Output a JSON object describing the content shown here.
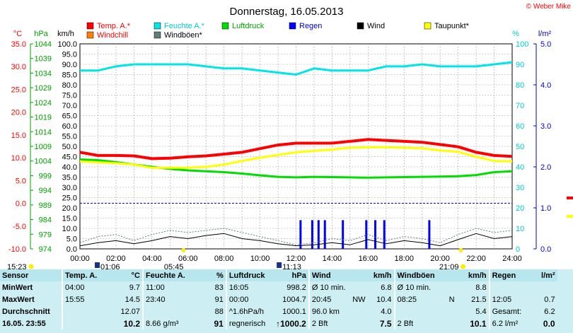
{
  "title": "Donnerstag, 16.05.2013",
  "credit": "© Weber Mike",
  "colors": {
    "temp": "#ff0000",
    "windchill": "#ff8000",
    "humidity": "#00e5e5",
    "windgust": "#5f7f7f",
    "pressure": "#00dd00",
    "rain": "#0000ff",
    "wind": "#000000",
    "dewpoint": "#ffff00",
    "axis_left": "#ff0000",
    "axis_hpa": "#00a000",
    "axis_right": "#00cccc",
    "axis_rain": "#0000cc"
  },
  "axis_headers": {
    "celsius": "°C",
    "hpa": "hPa",
    "kmh": "km/h",
    "percent": "%",
    "rain": "l/m²"
  },
  "legend": [
    {
      "label": "Temp. A.*",
      "color": "#ff0000"
    },
    {
      "label": "Feuchte A.*",
      "color": "#00e5e5"
    },
    {
      "label": "Luftdruck",
      "color": "#00dd00"
    },
    {
      "label": "Regen",
      "color": "#0000ff"
    },
    {
      "label": "Wind",
      "color": "#000000"
    },
    {
      "label": "Taupunkt*",
      "color": "#ffff00"
    },
    {
      "label": "Windchill",
      "color": "#ff8000"
    },
    {
      "label": "Windböen*",
      "color": "#5f7f7f"
    }
  ],
  "ticks": {
    "celsius": [
      "35.0",
      "30.0",
      "25.0",
      "20.0",
      "15.0",
      "10.0",
      "5.0",
      "0.0",
      "-5.0",
      "-10.0"
    ],
    "hpa": [
      "1044",
      "1039",
      "1034",
      "1029",
      "1024",
      "1019",
      "1014",
      "1009",
      "1004",
      "999",
      "994",
      "989",
      "984",
      "979",
      "974"
    ],
    "kmh": [
      "100.0",
      "95.0",
      "90.0",
      "85.0",
      "80.0",
      "75.0",
      "70.0",
      "65.0",
      "60.0",
      "55.0",
      "50.0",
      "45.0",
      "40.0",
      "35.0",
      "30.0",
      "25.0",
      "20.0",
      "15.0",
      "10.0",
      "5.0",
      "0.0"
    ],
    "percent": [
      "100",
      "90",
      "80",
      "70",
      "60",
      "50",
      "40",
      "30",
      "20",
      "10",
      "0"
    ],
    "rain": [
      "5.0",
      "4.0",
      "3.0",
      "2.0",
      "1.0",
      "0.0"
    ],
    "time": [
      "00:00",
      "02:00",
      "04:00",
      "06:00",
      "08:00",
      "10:00",
      "12:00",
      "14:00",
      "16:00",
      "18:00",
      "20:00",
      "22:00",
      "24:00"
    ]
  },
  "sun_events": {
    "sunrise": "05:45",
    "sunset": "21:09",
    "moonrise": "01:06",
    "moonset": "11:13",
    "left_time": "15:23"
  },
  "chart_data": {
    "type": "line",
    "title": "Donnerstag, 16.05.2013",
    "x_hours": [
      0,
      1,
      2,
      3,
      4,
      5,
      6,
      7,
      8,
      9,
      10,
      11,
      12,
      13,
      14,
      15,
      16,
      17,
      18,
      19,
      20,
      21,
      22,
      23,
      24
    ],
    "xlim": [
      0,
      24
    ],
    "grid": true,
    "axes": {
      "celsius": {
        "range": [
          -10,
          35
        ]
      },
      "hpa": {
        "range": [
          974,
          1044
        ]
      },
      "kmh": {
        "range": [
          0,
          100
        ]
      },
      "percent": {
        "range": [
          0,
          100
        ]
      },
      "rain": {
        "range": [
          0,
          5.0
        ]
      }
    },
    "series": [
      {
        "name": "Temp. A.*",
        "unit": "°C",
        "values": [
          11.2,
          10.5,
          10.5,
          10.4,
          9.8,
          9.9,
          10.2,
          10.4,
          10.8,
          11.2,
          12.0,
          12.8,
          13.2,
          13.2,
          13.2,
          13.6,
          14.0,
          13.8,
          13.6,
          13.4,
          12.9,
          12.4,
          11.2,
          10.5,
          10.3
        ]
      },
      {
        "name": "Feuchte A.*",
        "unit": "%",
        "values": [
          87,
          87,
          89,
          90,
          90,
          90,
          90,
          89,
          88,
          88,
          87,
          86,
          85,
          88,
          87,
          87,
          87,
          89,
          89,
          90,
          89,
          89,
          89,
          90,
          91
        ]
      },
      {
        "name": "Luftdruck",
        "unit": "hPa",
        "values": [
          1004.5,
          1004.3,
          1003.6,
          1002.8,
          1002.0,
          1001.3,
          1000.8,
          1000.5,
          1000.2,
          999.7,
          999.1,
          998.6,
          998.4,
          998.6,
          998.5,
          998.4,
          998.3,
          998.4,
          998.5,
          998.6,
          998.7,
          998.8,
          999.2,
          1000.2,
          1000.5
        ]
      },
      {
        "name": "Taupunkt*",
        "unit": "°C",
        "values": [
          9.2,
          9.0,
          8.8,
          8.5,
          7.8,
          7.8,
          7.8,
          8.0,
          8.5,
          9.3,
          10.0,
          10.6,
          11.2,
          11.5,
          11.8,
          12.2,
          12.3,
          12.3,
          12.2,
          12.1,
          11.6,
          11.3,
          10.2,
          9.3,
          9.2
        ]
      },
      {
        "name": "Wind",
        "unit": "km/h",
        "values": [
          1.5,
          3.0,
          4.0,
          2.5,
          4.0,
          6.0,
          5.0,
          6.5,
          7.5,
          5.0,
          4.0,
          2.5,
          1.5,
          2.0,
          3.0,
          2.0,
          4.5,
          2.5,
          4.0,
          3.0,
          1.5,
          4.5,
          7.5,
          5.0,
          6.0
        ]
      },
      {
        "name": "Windböen*",
        "unit": "km/h",
        "values": [
          3,
          6,
          7,
          4,
          7,
          9,
          8,
          9,
          10,
          8,
          6,
          4,
          2,
          3,
          5,
          4,
          7,
          4,
          6,
          5,
          3,
          7,
          10,
          8,
          9
        ]
      },
      {
        "name": "Regen",
        "unit": "l/m²",
        "type": "bar",
        "x": [
          12.25,
          12.9,
          13.25,
          13.6,
          14.6,
          15.9,
          16.4,
          16.9,
          19.4
        ],
        "values": [
          0.7,
          0.7,
          0.7,
          0.7,
          0.7,
          0.7,
          0.7,
          0.7,
          0.7
        ]
      }
    ]
  },
  "stats": {
    "headers": {
      "c1": "Sensor",
      "c2": "Temp. A.",
      "c2u": "°C",
      "c3": "Feuchte A.",
      "c3u": "%",
      "c4": "Luftdruck",
      "c4u": "hPa",
      "c5": "Wind",
      "c5u": "km/h",
      "c6": "Windböen",
      "c6u": "km/h",
      "c7": "Regen",
      "c7u": "l/m²"
    },
    "rows": [
      {
        "label": "MinWert",
        "t_time": "04:00",
        "t_val": "9.7",
        "h_time": "11:00",
        "h_val": "83",
        "p_time": "16:05",
        "p_val": "998.2",
        "w_a": "Ø 10 min.",
        "w_b": "",
        "w_val": "6.8",
        "g_a": "Ø 10 min.",
        "g_b": "",
        "g_val": "8.8",
        "r_a": "",
        "r_val": ""
      },
      {
        "label": "MaxWert",
        "t_time": "15:55",
        "t_val": "14.5",
        "h_time": "23:40",
        "h_val": "91",
        "p_time": "00:00",
        "p_val": "1004.7",
        "w_a": "20:45",
        "w_b": "NW",
        "w_val": "10.4",
        "g_a": "08:25",
        "g_b": "N",
        "g_val": "21.5",
        "r_a": "12:05",
        "r_val": "0.7"
      },
      {
        "label": "Durchschnitt",
        "t_time": "",
        "t_val": "12.07",
        "h_time": "",
        "h_val": "88",
        "p_time": "^1.6hPa/h",
        "p_val": "1000.1",
        "w_a": "96.0 km",
        "w_b": "",
        "w_val": "4.0",
        "g_a": "",
        "g_b": "",
        "g_val": "5.4",
        "r_a": "Gesamt:",
        "r_val": "6.2"
      },
      {
        "label": "16.05. 23:55",
        "t_time": "",
        "t_val": "10.2",
        "h_time": "8.66 g/m³",
        "h_val": "91",
        "p_time": "regnerisch",
        "p_val": "↑1000.2",
        "w_a": "2 Bft",
        "w_b": "",
        "w_val": "7.5",
        "g_a": "2 Bft",
        "g_b": "",
        "g_val": "10.1",
        "r_a": "6.2 l/m²",
        "r_val": "0.0"
      }
    ]
  }
}
